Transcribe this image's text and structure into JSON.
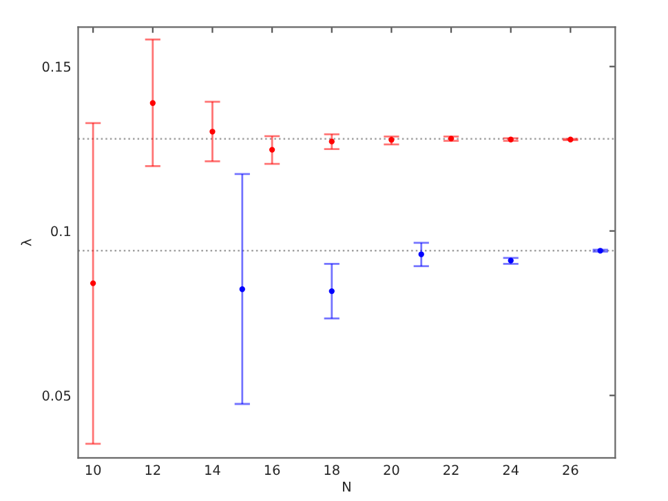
{
  "chart_data": {
    "type": "scatter",
    "xlabel": "N",
    "ylabel": "λ",
    "xlim": [
      9.5,
      27.5
    ],
    "ylim": [
      0.031,
      0.162
    ],
    "xticks": [
      10,
      12,
      14,
      16,
      18,
      20,
      22,
      24,
      26
    ],
    "yticks": [
      {
        "value": 0.05,
        "label": "0.05"
      },
      {
        "value": 0.1,
        "label": "0.1"
      },
      {
        "value": 0.15,
        "label": "0.15"
      }
    ],
    "grid": false,
    "marker": "circle",
    "series": [
      {
        "color": "#ff0000",
        "x": [
          10,
          12,
          14,
          16,
          18,
          20,
          22,
          24,
          26
        ],
        "values": [
          0.0841,
          0.1389,
          0.1302,
          0.1247,
          0.1272,
          0.1277,
          0.1281,
          0.1278,
          0.1278
        ],
        "errors": [
          [
            0.0353,
            0.1328
          ],
          [
            0.1197,
            0.1582
          ],
          [
            0.1212,
            0.1393
          ],
          [
            0.1204,
            0.1288
          ],
          [
            0.1249,
            0.1294
          ],
          [
            0.1263,
            0.1287
          ],
          [
            0.1274,
            0.1287
          ],
          [
            0.1274,
            0.1282
          ],
          [
            0.1276,
            0.128
          ]
        ]
      },
      {
        "color": "#0000ff",
        "x": [
          15,
          18,
          21,
          24,
          27
        ],
        "values": [
          0.0823,
          0.0817,
          0.0929,
          0.091,
          0.094
        ],
        "errors": [
          [
            0.0474,
            0.1173
          ],
          [
            0.0734,
            0.09
          ],
          [
            0.0893,
            0.0964
          ],
          [
            0.09,
            0.0918
          ],
          [
            0.0937,
            0.0943
          ]
        ]
      }
    ],
    "ref_lines": [
      {
        "axis": "y",
        "value": 0.128,
        "color": "#a0a0a0",
        "line_style": "dotted"
      },
      {
        "axis": "y",
        "value": 0.094,
        "color": "#a0a0a0",
        "line_style": "dotted"
      }
    ]
  }
}
